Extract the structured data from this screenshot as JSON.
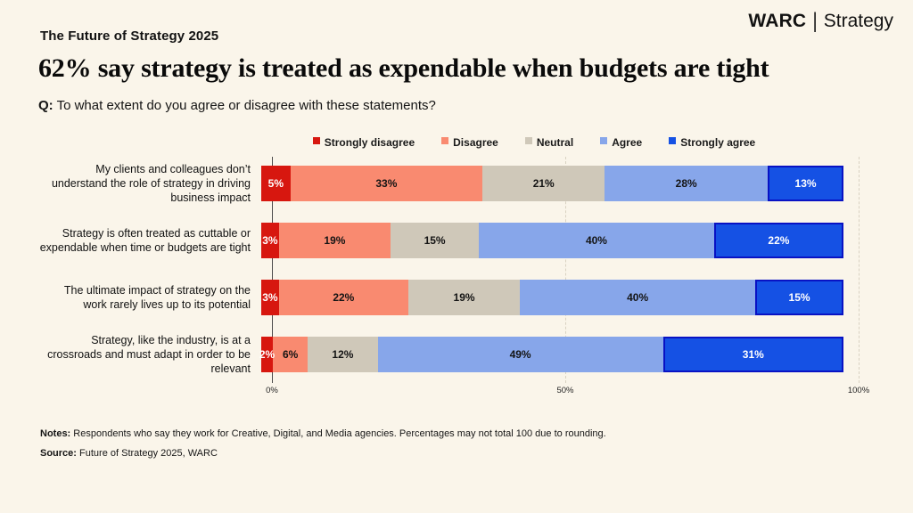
{
  "header": {
    "report_label": "The Future of Strategy 2025",
    "brand": {
      "name": "WARC",
      "divider": "|",
      "suffix": "Strategy"
    },
    "title": "62% say strategy is treated as expendable when budgets are tight",
    "question_prefix": "Q:",
    "question": "To what extent do you agree or disagree with these statements?"
  },
  "chart_data": {
    "type": "bar",
    "orientation": "horizontal",
    "stacked": true,
    "grid": "vertical-dashed",
    "legend_position": "top",
    "categories": [
      "My clients and colleagues don’t understand the role of strategy in driving business impact",
      "Strategy is often treated as cuttable or expendable when time or budgets are tight",
      "The ultimate impact of strategy on the work rarely lives up to its potential",
      "Strategy, like the industry, is at a crossroads and must adapt in order to be relevant"
    ],
    "series": [
      {
        "name": "Strongly disagree",
        "color": "#d7170f",
        "text_color": "#ffffff",
        "values": [
          5,
          3,
          3,
          2
        ]
      },
      {
        "name": "Disagree",
        "color": "#f98a70",
        "text_color": "#141414",
        "values": [
          33,
          19,
          22,
          6
        ]
      },
      {
        "name": "Neutral",
        "color": "#cfc8b9",
        "text_color": "#141414",
        "values": [
          21,
          15,
          19,
          12
        ]
      },
      {
        "name": "Agree",
        "color": "#87a6ea",
        "text_color": "#141414",
        "values": [
          28,
          40,
          40,
          49
        ]
      },
      {
        "name": "Strongly agree",
        "color": "#1551e4",
        "border_color": "#0812c4",
        "text_color": "#ffffff",
        "values": [
          13,
          22,
          15,
          31
        ]
      }
    ],
    "x_ticks": [
      "0%",
      "50%",
      "100%"
    ],
    "xlim": [
      0,
      100
    ],
    "value_suffix": "%"
  },
  "footer": {
    "notes_label": "Notes:",
    "notes": " Respondents who say they work for Creative, Digital, and Media agencies. Percentages may not total 100 due to rounding.",
    "source_label": "Source:",
    "source": " Future of Strategy 2025, WARC"
  }
}
